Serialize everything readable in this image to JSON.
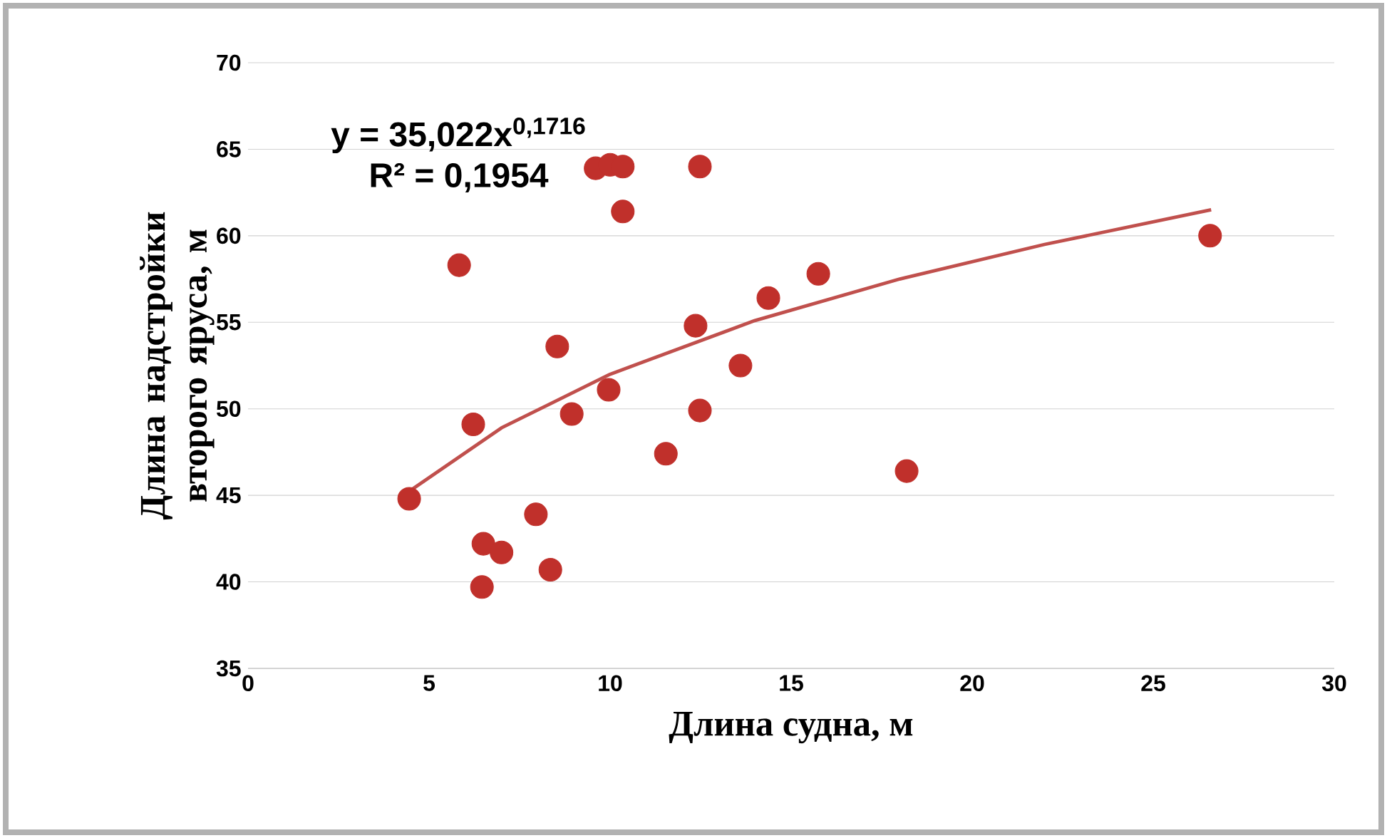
{
  "chart_data": {
    "type": "scatter",
    "xlabel": "Длина судна, м",
    "ylabel": "Длина надстройки  второго яруса, м",
    "xlim": [
      0,
      30
    ],
    "xticks": [
      0,
      5,
      10,
      15,
      20,
      25,
      30
    ],
    "ylim": [
      35,
      70
    ],
    "yticks": [
      35,
      40,
      45,
      50,
      55,
      60,
      65,
      70
    ],
    "grid": "y",
    "marker": "circle",
    "annotations": [
      "y = 35,022x$^{0,1716}$",
      "R² = 0,1954"
    ],
    "series": [
      {
        "color": "#c0302b",
        "x": [
          4.45,
          5.83,
          6.22,
          6.46,
          6.5,
          7.0,
          7.95,
          8.35,
          8.54,
          8.94,
          9.6,
          10.0,
          10.35,
          10.35,
          9.96,
          11.54,
          12.36,
          12.48,
          12.48,
          13.6,
          14.37,
          15.75,
          18.19,
          26.57
        ],
        "values": [
          44.8,
          58.3,
          49.1,
          39.7,
          42.2,
          41.7,
          43.9,
          40.7,
          53.6,
          49.7,
          63.9,
          64.1,
          64.0,
          61.4,
          51.1,
          47.4,
          54.8,
          64.0,
          49.9,
          52.5,
          56.4,
          57.8,
          46.4,
          60.0
        ]
      },
      {
        "type": "line",
        "marker": "none",
        "color": "#c0504d",
        "x": [
          4.5,
          7,
          10,
          14,
          18,
          22,
          26.6
        ],
        "values": [
          45.3,
          48.9,
          52.0,
          55.1,
          57.5,
          59.5,
          61.5
        ]
      }
    ]
  }
}
